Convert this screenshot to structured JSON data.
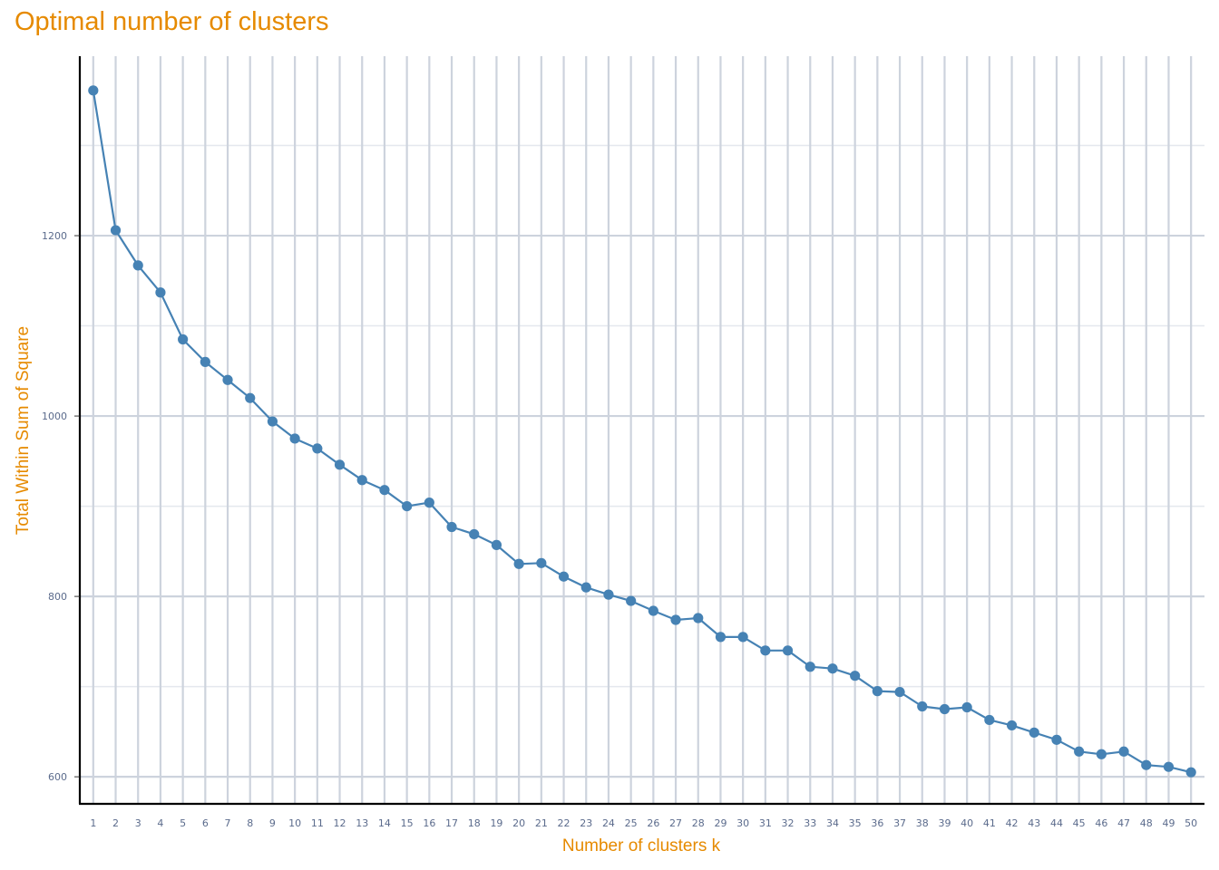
{
  "title": "Optimal number of clusters",
  "chart_data": {
    "type": "line",
    "title": "Optimal number of clusters",
    "xlabel": "Number of clusters k",
    "ylabel": "Total Within Sum of Square",
    "x": [
      1,
      2,
      3,
      4,
      5,
      6,
      7,
      8,
      9,
      10,
      11,
      12,
      13,
      14,
      15,
      16,
      17,
      18,
      19,
      20,
      21,
      22,
      23,
      24,
      25,
      26,
      27,
      28,
      29,
      30,
      31,
      32,
      33,
      34,
      35,
      36,
      37,
      38,
      39,
      40,
      41,
      42,
      43,
      44,
      45,
      46,
      47,
      48,
      49,
      50
    ],
    "series": [
      {
        "values": [
          1361,
          1206,
          1167,
          1137,
          1085,
          1060,
          1040,
          1020,
          994,
          975,
          964,
          946,
          929,
          918,
          900,
          904,
          877,
          869,
          857,
          836,
          837,
          822,
          810,
          802,
          795,
          784,
          774,
          776,
          755,
          755,
          740,
          740,
          722,
          720,
          712,
          695,
          694,
          678,
          675,
          677,
          663,
          657,
          649,
          641,
          628,
          625,
          628,
          613,
          611,
          605
        ],
        "color": "#4682b4"
      }
    ],
    "yticks": [
      600,
      800,
      1000,
      1200
    ],
    "ylim": [
      570,
      1399
    ],
    "xlim": [
      0.4,
      50.6
    ],
    "grid": true,
    "colors": {
      "line": "#4682b4",
      "grid": "#cdd3dd",
      "title": "#e68a00",
      "tick": "#5b6b8c",
      "axis": "#000000"
    }
  }
}
